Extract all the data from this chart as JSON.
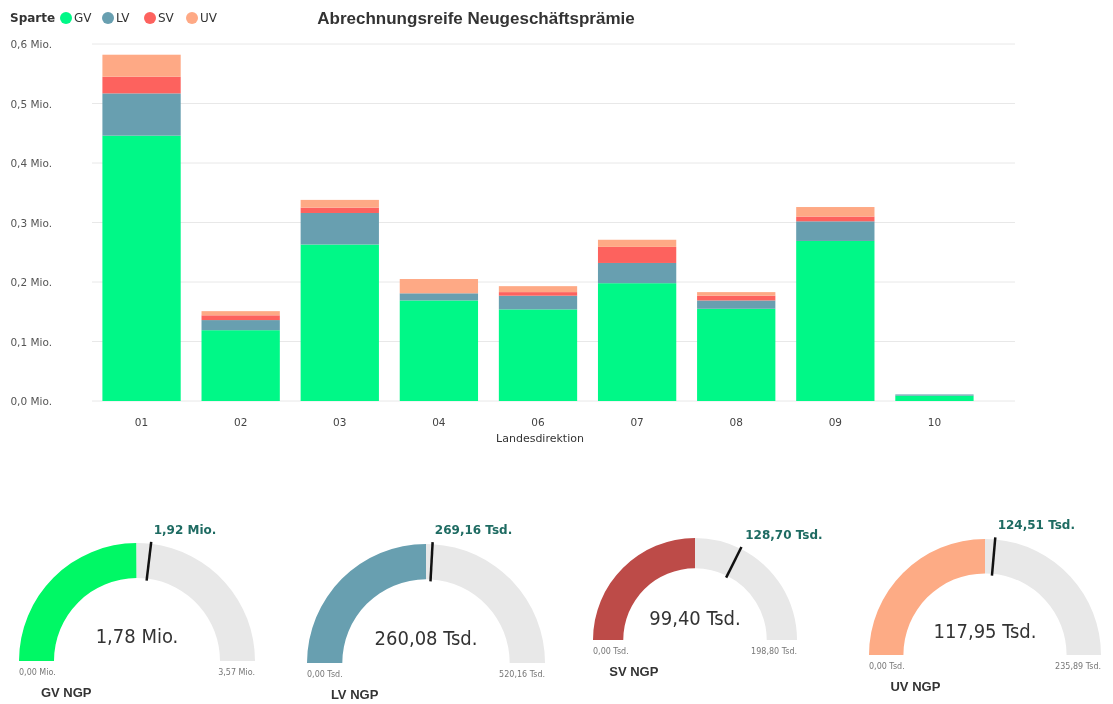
{
  "chart_data": [
    {
      "type": "bar",
      "title": "Abrechnungsreife Neugeschäftsprämie",
      "xlabel": "Landesdirektion",
      "legend_title": "Sparte",
      "stacked": true,
      "legend": "top left",
      "grid": "y",
      "categories": [
        "01",
        "02",
        "03",
        "04",
        "06",
        "07",
        "08",
        "09",
        "10"
      ],
      "series": [
        {
          "name": "GV",
          "color": "#00f887",
          "values": [
            0.446,
            0.119,
            0.263,
            0.169,
            0.154,
            0.198,
            0.155,
            0.269,
            0.009
          ]
        },
        {
          "name": "LV",
          "color": "#689fb0",
          "values": [
            0.071,
            0.017,
            0.053,
            0.012,
            0.023,
            0.034,
            0.014,
            0.033,
            0.002
          ]
        },
        {
          "name": "SV",
          "color": "#fd625e",
          "values": [
            0.028,
            0.008,
            0.009,
            0,
            0.006,
            0.027,
            0.008,
            0.008,
            0
          ]
        },
        {
          "name": "UV",
          "color": "#fea985",
          "values": [
            0.037,
            0.007,
            0.013,
            0.024,
            0.01,
            0.012,
            0.006,
            0.016,
            0
          ]
        }
      ],
      "ylim": [
        0,
        0.6
      ],
      "yticks": [
        {
          "value": 0,
          "label": "0,0 Mio."
        },
        {
          "value": 0.1,
          "label": "0,1 Mio."
        },
        {
          "value": 0.2,
          "label": "0,2 Mio."
        },
        {
          "value": 0.3,
          "label": "0,3 Mio."
        },
        {
          "value": 0.4,
          "label": "0,4 Mio."
        },
        {
          "value": 0.5,
          "label": "0,5 Mio."
        },
        {
          "value": 0.6,
          "label": "0,6 Mio."
        }
      ]
    },
    {
      "type": "donut",
      "title": "GV NGP",
      "categories": [
        null,
        null,
        null
      ],
      "values": [
        1.78,
        0.14,
        1.65
      ],
      "value_labels": [
        "1,78 Mio.",
        null,
        null
      ],
      "colors": [
        "#00f865",
        "#e8e8e8",
        "#e8e8e8"
      ],
      "annotations": [
        "0,00 Mio.",
        "3,57 Mio.",
        "1,92 Mio."
      ]
    },
    {
      "type": "donut",
      "title": "LV NGP",
      "categories": [
        null,
        null,
        null
      ],
      "values": [
        260.08,
        9.08,
        251.0
      ],
      "value_labels": [
        "260,08 Tsd.",
        null,
        null
      ],
      "colors": [
        "#689fb0",
        "#e8e8e8",
        "#e8e8e8"
      ],
      "annotations": [
        "0,00 Tsd.",
        "520,16 Tsd.",
        "269,16 Tsd."
      ]
    },
    {
      "type": "donut",
      "title": "SV NGP",
      "categories": [
        null,
        null,
        null
      ],
      "values": [
        99.4,
        29.3,
        70.1
      ],
      "value_labels": [
        "99,40 Tsd.",
        null,
        null
      ],
      "colors": [
        "#bd4b48",
        "#e8e8e8",
        "#e8e8e8"
      ],
      "annotations": [
        "0,00 Tsd.",
        "198,80 Tsd.",
        "128,70 Tsd."
      ]
    },
    {
      "type": "donut",
      "title": "UV NGP",
      "categories": [
        null,
        null,
        null
      ],
      "values": [
        117.95,
        6.56,
        111.38
      ],
      "value_labels": [
        "117,95 Tsd.",
        null,
        null
      ],
      "colors": [
        "#fdab85",
        "#e8e8e8",
        "#e8e8e8"
      ],
      "annotations": [
        "0,00 Tsd.",
        "235,89 Tsd.",
        "124,51 Tsd."
      ]
    }
  ]
}
